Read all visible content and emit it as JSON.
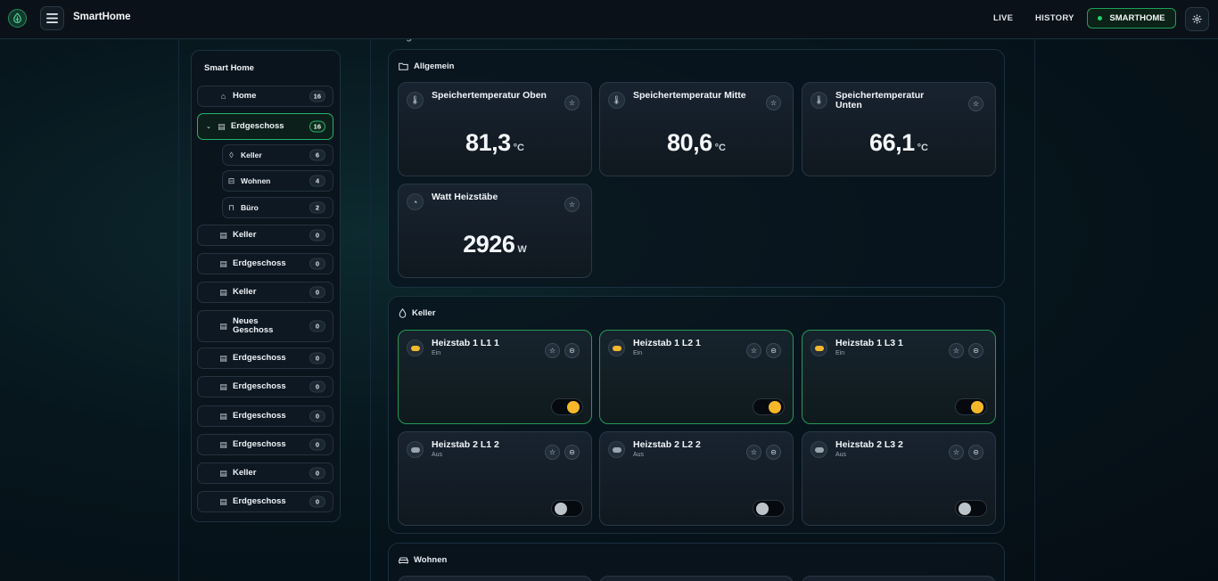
{
  "header": {
    "brand": "SmartHome",
    "nav": {
      "live": "LIVE",
      "history": "HISTORY",
      "smarthome": "SMARTHOME"
    }
  },
  "sidebar": {
    "title": "Smart Home",
    "items": [
      {
        "label": "Home",
        "count": "16",
        "icon": "house-icon"
      },
      {
        "label": "Erdgeschoss",
        "count": "16",
        "icon": "building-icon",
        "active": true,
        "expanded": true
      },
      {
        "label": "Keller",
        "count": "6",
        "icon": "drop-icon",
        "sub": true
      },
      {
        "label": "Wohnen",
        "count": "4",
        "icon": "sofa-icon",
        "sub": true
      },
      {
        "label": "Büro",
        "count": "2",
        "icon": "desk-icon",
        "sub": true
      },
      {
        "label": "Keller",
        "count": "0",
        "icon": "building-icon"
      },
      {
        "label": "Erdgeschoss",
        "count": "0",
        "icon": "building-icon"
      },
      {
        "label": "Keller",
        "count": "0",
        "icon": "building-icon"
      },
      {
        "label": "Neues Geschoss",
        "count": "0",
        "icon": "building-icon"
      },
      {
        "label": "Erdgeschoss",
        "count": "0",
        "icon": "building-icon"
      },
      {
        "label": "Erdgeschoss",
        "count": "0",
        "icon": "building-icon"
      },
      {
        "label": "Erdgeschoss",
        "count": "0",
        "icon": "building-icon"
      },
      {
        "label": "Erdgeschoss",
        "count": "0",
        "icon": "building-icon"
      },
      {
        "label": "Keller",
        "count": "0",
        "icon": "building-icon"
      },
      {
        "label": "Erdgeschoss",
        "count": "0",
        "icon": "building-icon"
      }
    ]
  },
  "main": {
    "heading": "Erdgeschoss",
    "sections": [
      {
        "title": "Allgemein",
        "icon": "folder-icon",
        "sensors": [
          {
            "title": "Speichertemperatur Oben",
            "value": "81,3",
            "unit": "°C",
            "icon": "thermometer-icon"
          },
          {
            "title": "Speichertemperatur Mitte",
            "value": "80,6",
            "unit": "°C",
            "icon": "thermometer-icon"
          },
          {
            "title": "Speichertemperatur Unten",
            "value": "66,1",
            "unit": "°C",
            "icon": "thermometer-icon"
          },
          {
            "title": "Watt Heizstäbe",
            "value": "2926",
            "unit": "W",
            "icon": "gauge-icon"
          }
        ]
      },
      {
        "title": "Keller",
        "icon": "drop-icon",
        "switches": [
          {
            "title": "Heizstab 1 L1 1",
            "state": "Ein",
            "on": true
          },
          {
            "title": "Heizstab 1 L2 1",
            "state": "Ein",
            "on": true
          },
          {
            "title": "Heizstab 1 L3 1",
            "state": "Ein",
            "on": true
          },
          {
            "title": "Heizstab 2 L1 2",
            "state": "Aus",
            "on": false
          },
          {
            "title": "Heizstab 2 L2 2",
            "state": "Aus",
            "on": false
          },
          {
            "title": "Heizstab 2 L3 2",
            "state": "Aus",
            "on": false
          }
        ]
      },
      {
        "title": "Wohnen",
        "icon": "sofa-icon"
      }
    ]
  },
  "colors": {
    "accent": "#22d36a",
    "toggle_on": "#f5b82a",
    "toggle_off": "#bcc4cb"
  }
}
